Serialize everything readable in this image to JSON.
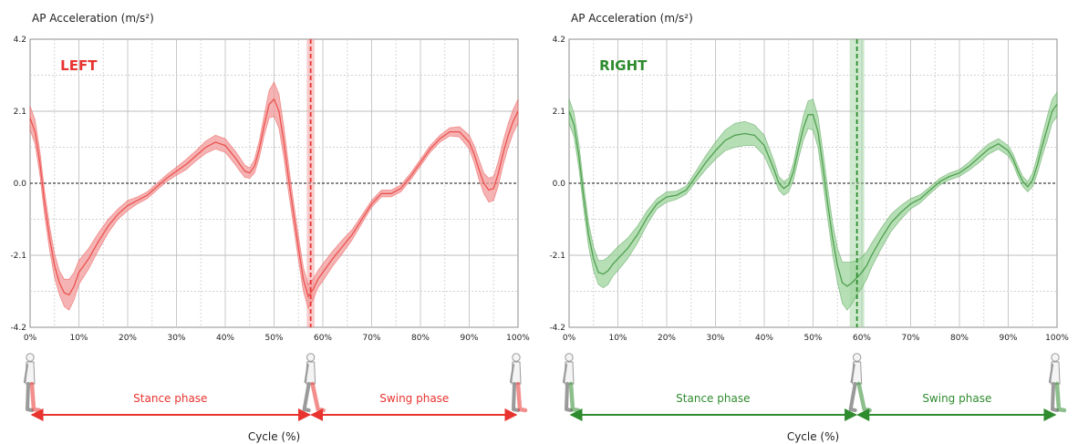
{
  "chart_data": [
    {
      "type": "line",
      "id": "left",
      "ylabel": "AP Acceleration (m/s²)",
      "xlabel": "Cycle (%)",
      "tag": "LEFT",
      "color": "#e8332f",
      "band_color": "#f19a9a",
      "ylim": [
        -4.2,
        4.2
      ],
      "y_ticks": [
        "4.2",
        "2.1",
        "0.0",
        "-2.1",
        "-4.2"
      ],
      "y_tick_values": [
        4.2,
        2.1,
        0.0,
        -2.1,
        -4.2
      ],
      "xlim": [
        0,
        100
      ],
      "x_ticks": [
        "0%",
        "10%",
        "20%",
        "30%",
        "40%",
        "50%",
        "60%",
        "70%",
        "80%",
        "90%",
        "100%"
      ],
      "x_tick_values": [
        0,
        10,
        20,
        30,
        40,
        50,
        60,
        70,
        80,
        90,
        100
      ],
      "grid": true,
      "zero_line": true,
      "toe_off": 57.5,
      "toe_off_band": [
        56.7,
        58.3
      ],
      "phases": [
        "Stance phase",
        "Swing phase"
      ],
      "x": [
        0,
        1,
        2,
        3,
        4,
        5,
        6,
        7,
        8,
        9,
        10,
        12,
        14,
        16,
        18,
        20,
        22,
        24,
        26,
        28,
        30,
        32,
        34,
        36,
        38,
        40,
        42,
        43,
        44,
        45,
        46,
        47,
        48,
        49,
        50,
        51,
        52,
        53,
        54,
        55,
        56,
        57,
        58,
        59,
        60,
        62,
        64,
        66,
        68,
        70,
        72,
        74,
        76,
        78,
        80,
        82,
        84,
        86,
        88,
        90,
        91,
        92,
        93,
        94,
        95,
        96,
        97,
        98,
        99,
        100
      ],
      "y": [
        1.9,
        1.5,
        0.6,
        -0.6,
        -1.6,
        -2.4,
        -2.9,
        -3.2,
        -3.25,
        -3.0,
        -2.6,
        -2.2,
        -1.7,
        -1.25,
        -0.9,
        -0.65,
        -0.5,
        -0.35,
        -0.1,
        0.15,
        0.35,
        0.55,
        0.8,
        1.05,
        1.2,
        1.1,
        0.75,
        0.55,
        0.35,
        0.3,
        0.5,
        1.0,
        1.7,
        2.3,
        2.45,
        2.1,
        1.2,
        0.1,
        -0.9,
        -1.9,
        -2.8,
        -3.3,
        -3.1,
        -2.8,
        -2.6,
        -2.2,
        -1.85,
        -1.5,
        -1.05,
        -0.6,
        -0.3,
        -0.3,
        -0.15,
        0.2,
        0.6,
        1.0,
        1.3,
        1.5,
        1.5,
        1.2,
        0.85,
        0.4,
        0.0,
        -0.2,
        -0.15,
        0.3,
        0.9,
        1.4,
        1.8,
        2.1
      ],
      "band": [
        0.35,
        0.35,
        0.35,
        0.35,
        0.35,
        0.35,
        0.35,
        0.4,
        0.45,
        0.4,
        0.35,
        0.3,
        0.25,
        0.2,
        0.15,
        0.15,
        0.1,
        0.1,
        0.1,
        0.1,
        0.12,
        0.15,
        0.15,
        0.18,
        0.2,
        0.2,
        0.2,
        0.2,
        0.18,
        0.15,
        0.2,
        0.25,
        0.3,
        0.4,
        0.5,
        0.5,
        0.45,
        0.4,
        0.35,
        0.35,
        0.35,
        0.35,
        0.3,
        0.25,
        0.25,
        0.22,
        0.2,
        0.15,
        0.12,
        0.1,
        0.1,
        0.1,
        0.1,
        0.1,
        0.1,
        0.1,
        0.1,
        0.12,
        0.15,
        0.2,
        0.25,
        0.3,
        0.3,
        0.35,
        0.35,
        0.35,
        0.35,
        0.35,
        0.35,
        0.35
      ]
    },
    {
      "type": "line",
      "id": "right",
      "ylabel": "AP Acceleration (m/s²)",
      "xlabel": "Cycle (%)",
      "tag": "RIGHT",
      "color": "#2e8b2e",
      "band_color": "#9ed49e",
      "ylim": [
        -4.2,
        4.2
      ],
      "y_ticks": [
        "4.2",
        "2.1",
        "0.0",
        "-2.1",
        "-4.2"
      ],
      "y_tick_values": [
        4.2,
        2.1,
        0.0,
        -2.1,
        -4.2
      ],
      "xlim": [
        0,
        100
      ],
      "x_ticks": [
        "0%",
        "10%",
        "20%",
        "30%",
        "40%",
        "50%",
        "60%",
        "70%",
        "80%",
        "90%",
        "100%"
      ],
      "x_tick_values": [
        0,
        10,
        20,
        30,
        40,
        50,
        60,
        70,
        80,
        90,
        100
      ],
      "grid": true,
      "zero_line": true,
      "toe_off": 59.0,
      "toe_off_band": [
        57.5,
        60.5
      ],
      "phases": [
        "Stance phase",
        "Swing phase"
      ],
      "x": [
        0,
        1,
        2,
        3,
        4,
        5,
        6,
        7,
        8,
        9,
        10,
        12,
        14,
        16,
        18,
        20,
        22,
        24,
        26,
        28,
        30,
        32,
        34,
        36,
        38,
        40,
        42,
        43,
        44,
        45,
        46,
        47,
        48,
        49,
        50,
        51,
        52,
        53,
        54,
        55,
        56,
        57,
        58,
        59,
        60,
        61,
        62,
        64,
        66,
        68,
        70,
        72,
        74,
        76,
        78,
        80,
        82,
        84,
        86,
        88,
        90,
        91,
        92,
        93,
        94,
        95,
        96,
        97,
        98,
        99,
        100
      ],
      "y": [
        2.1,
        1.7,
        0.8,
        -0.4,
        -1.5,
        -2.2,
        -2.6,
        -2.65,
        -2.55,
        -2.35,
        -2.2,
        -1.9,
        -1.5,
        -1.0,
        -0.6,
        -0.4,
        -0.35,
        -0.2,
        0.2,
        0.6,
        0.95,
        1.25,
        1.4,
        1.45,
        1.4,
        1.1,
        0.4,
        0.0,
        -0.15,
        -0.05,
        0.35,
        1.0,
        1.6,
        2.0,
        2.0,
        1.5,
        0.5,
        -0.6,
        -1.6,
        -2.4,
        -2.9,
        -3.0,
        -2.9,
        -2.75,
        -2.6,
        -2.4,
        -2.1,
        -1.6,
        -1.15,
        -0.85,
        -0.6,
        -0.45,
        -0.2,
        0.05,
        0.2,
        0.3,
        0.5,
        0.75,
        1.0,
        1.15,
        0.95,
        0.7,
        0.35,
        0.05,
        -0.1,
        0.1,
        0.55,
        1.1,
        1.6,
        2.1,
        2.3
      ],
      "band": [
        0.35,
        0.35,
        0.35,
        0.35,
        0.35,
        0.35,
        0.35,
        0.4,
        0.4,
        0.35,
        0.35,
        0.3,
        0.25,
        0.2,
        0.15,
        0.15,
        0.12,
        0.12,
        0.15,
        0.2,
        0.25,
        0.3,
        0.35,
        0.35,
        0.3,
        0.3,
        0.25,
        0.2,
        0.2,
        0.2,
        0.25,
        0.3,
        0.35,
        0.4,
        0.45,
        0.45,
        0.45,
        0.45,
        0.45,
        0.5,
        0.6,
        0.7,
        0.6,
        0.5,
        0.45,
        0.4,
        0.35,
        0.3,
        0.25,
        0.2,
        0.15,
        0.12,
        0.1,
        0.1,
        0.1,
        0.1,
        0.12,
        0.15,
        0.15,
        0.15,
        0.15,
        0.15,
        0.15,
        0.15,
        0.15,
        0.2,
        0.25,
        0.3,
        0.35,
        0.35,
        0.35
      ]
    }
  ]
}
